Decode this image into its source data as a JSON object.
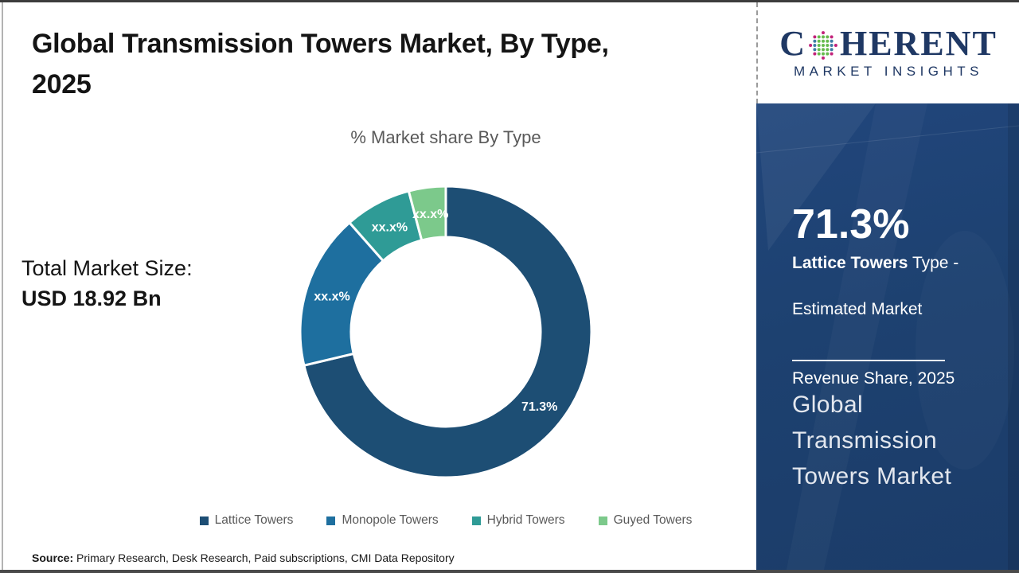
{
  "header": {
    "title": "Global Transmission Towers Market, By Type,\n2025"
  },
  "logo": {
    "prefix": "C",
    "suffix": "HERENT",
    "subtitle": "MARKET INSIGHTS",
    "navy": "#1f3864",
    "globe_colors": {
      "rim": "#c2227a",
      "center": "#66bb4e",
      "side": "#3e7ca6"
    }
  },
  "left_panel": {
    "total_label": "Total Market Size:",
    "total_value": "USD 18.92 Bn"
  },
  "chart_data": {
    "type": "pie",
    "subtype": "donut",
    "title": "% Market share By Type",
    "categories": [
      "Lattice Towers",
      "Monopole Towers",
      "Hybrid Towers",
      "Guyed Towers"
    ],
    "values": [
      71.3,
      17.2,
      7.4,
      4.1
    ],
    "display_labels": [
      "71.3%",
      "xx.x%",
      "xx.x%",
      "xx.x%"
    ],
    "colors": [
      "#1d4e74",
      "#1e6f9f",
      "#2f9b96",
      "#7cc98b"
    ],
    "start_angle_deg": 0,
    "direction": "clockwise",
    "donut_hole_ratio": 0.65,
    "separator_color": "#ffffff",
    "label_color": "#ffffff",
    "legend_position": "bottom"
  },
  "sidebar": {
    "bg_color": "#1d4170",
    "stat_value": "71.3%",
    "stat_desc_bold": "Lattice Towers",
    "stat_desc_rest": " Type -",
    "stat_desc_line2": "Estimated Market",
    "stat_desc_line3": "Revenue Share, 2025",
    "market_name": "Global\nTransmission\nTowers Market"
  },
  "footer": {
    "source_label": "Source:",
    "source_text": " Primary Research, Desk Research, Paid subscriptions, CMI Data Repository"
  }
}
